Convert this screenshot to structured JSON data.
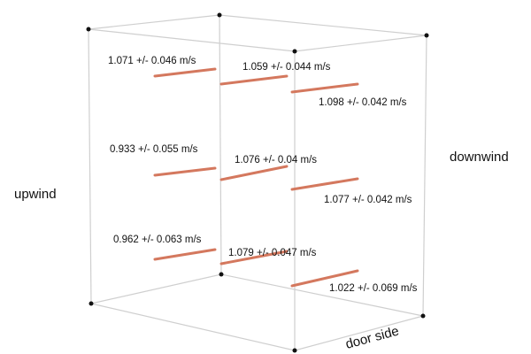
{
  "side_labels": {
    "upwind": "upwind",
    "downwind": "downwind",
    "door": "door side"
  },
  "measurements": [
    "1.071 +/- 0.046 m/s",
    "1.059 +/- 0.044 m/s",
    "1.098 +/- 0.042 m/s",
    "0.933 +/- 0.055 m/s",
    "1.076 +/- 0.04 m/s",
    "1.077 +/- 0.042 m/s",
    "0.962 +/- 0.063 m/s",
    "1.079 +/- 0.047 m/s",
    "1.022 +/- 0.069 m/s"
  ]
}
